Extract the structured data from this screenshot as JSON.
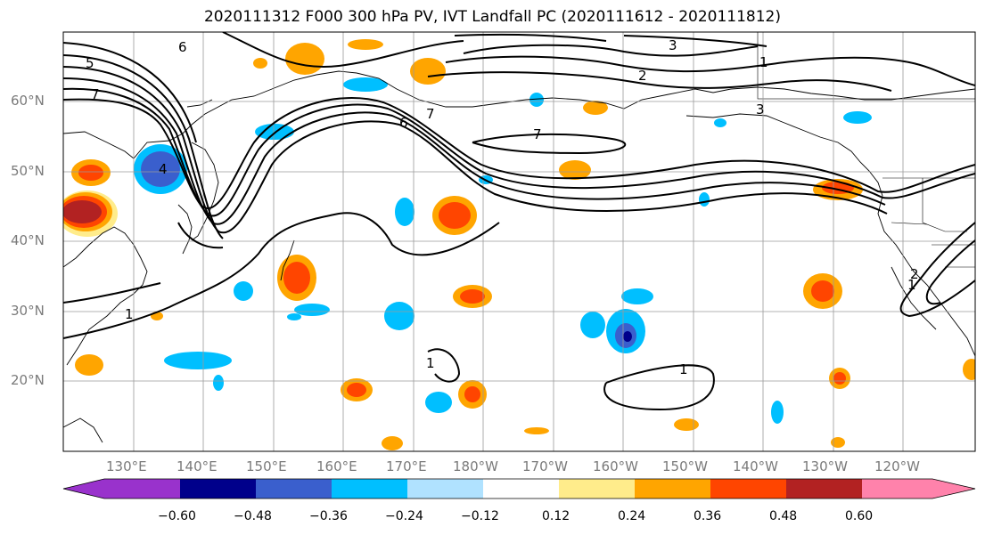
{
  "title": "2020111312 F000 300 hPa PV, IVT Landfall PC (2020111612 - 2020111812)",
  "lat_labels": [
    "60°N",
    "50°N",
    "40°N",
    "30°N",
    "20°N"
  ],
  "lon_labels": [
    "130°E",
    "140°E",
    "150°E",
    "160°E",
    "170°E",
    "180°W",
    "170°W",
    "160°W",
    "150°W",
    "140°W",
    "130°W",
    "120°W"
  ],
  "colorbar": {
    "ticks": [
      "−0.60",
      "−0.48",
      "−0.36",
      "−0.24",
      "−0.12",
      "0.12",
      "0.24",
      "0.36",
      "0.48",
      "0.60"
    ],
    "colors": [
      "#9932cc",
      "#00008b",
      "#3a5fcd",
      "#00bfff",
      "#b0e2ff",
      "#ffffff",
      "#ffec8b",
      "#ffa500",
      "#ff4500",
      "#b22222",
      "#ff82ab"
    ]
  },
  "contour_labels": [
    "1",
    "1",
    "1",
    "1",
    "1",
    "2",
    "2",
    "3",
    "3",
    "4",
    "5",
    "6",
    "6",
    "7",
    "7",
    "7"
  ],
  "shading_colors": {
    "light_blue": "#b0e2ff",
    "blue": "#00bfff",
    "mid_blue": "#3a5fcd",
    "navy": "#00008b",
    "yellow": "#ffec8b",
    "orange": "#ffa500",
    "red_orange": "#ff4500",
    "firebrick": "#b22222"
  }
}
